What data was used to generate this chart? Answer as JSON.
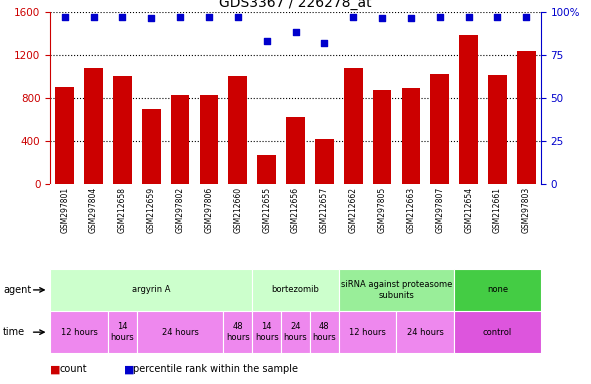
{
  "title": "GDS3367 / 226278_at",
  "samples": [
    "GSM297801",
    "GSM297804",
    "GSM212658",
    "GSM212659",
    "GSM297802",
    "GSM297806",
    "GSM212660",
    "GSM212655",
    "GSM212656",
    "GSM212657",
    "GSM212662",
    "GSM297805",
    "GSM212663",
    "GSM297807",
    "GSM212654",
    "GSM212661",
    "GSM297803"
  ],
  "counts": [
    900,
    1080,
    1000,
    700,
    830,
    830,
    1000,
    270,
    620,
    420,
    1080,
    870,
    890,
    1020,
    1380,
    1010,
    1230
  ],
  "percentiles": [
    97,
    97,
    97,
    96,
    97,
    97,
    97,
    83,
    88,
    82,
    97,
    96,
    96,
    97,
    97,
    97,
    97
  ],
  "bar_color": "#cc0000",
  "dot_color": "#0000cc",
  "ylim_left": [
    0,
    1600
  ],
  "ylim_right": [
    0,
    100
  ],
  "yticks_left": [
    0,
    400,
    800,
    1200,
    1600
  ],
  "yticks_right": [
    0,
    25,
    50,
    75,
    100
  ],
  "agent_groups": [
    {
      "label": "argyrin A",
      "start": 0,
      "end": 7,
      "color": "#ccffcc"
    },
    {
      "label": "bortezomib",
      "start": 7,
      "end": 10,
      "color": "#ccffcc"
    },
    {
      "label": "siRNA against proteasome\nsubunits",
      "start": 10,
      "end": 14,
      "color": "#99ee99"
    },
    {
      "label": "none",
      "start": 14,
      "end": 17,
      "color": "#44cc44"
    }
  ],
  "time_groups": [
    {
      "label": "12 hours",
      "start": 0,
      "end": 2,
      "color": "#ee88ee"
    },
    {
      "label": "14\nhours",
      "start": 2,
      "end": 3,
      "color": "#ee88ee"
    },
    {
      "label": "24 hours",
      "start": 3,
      "end": 6,
      "color": "#ee88ee"
    },
    {
      "label": "48\nhours",
      "start": 6,
      "end": 7,
      "color": "#ee88ee"
    },
    {
      "label": "14\nhours",
      "start": 7,
      "end": 8,
      "color": "#ee88ee"
    },
    {
      "label": "24\nhours",
      "start": 8,
      "end": 9,
      "color": "#ee88ee"
    },
    {
      "label": "48\nhours",
      "start": 9,
      "end": 10,
      "color": "#ee88ee"
    },
    {
      "label": "12 hours",
      "start": 10,
      "end": 12,
      "color": "#ee88ee"
    },
    {
      "label": "24 hours",
      "start": 12,
      "end": 14,
      "color": "#ee88ee"
    },
    {
      "label": "control",
      "start": 14,
      "end": 17,
      "color": "#dd55dd"
    }
  ],
  "background_color": "#ffffff",
  "tick_label_color_left": "#cc0000",
  "tick_label_color_right": "#0000cc",
  "xlabel_row_bg": "#cccccc",
  "left_label_bg": "#ffffff"
}
